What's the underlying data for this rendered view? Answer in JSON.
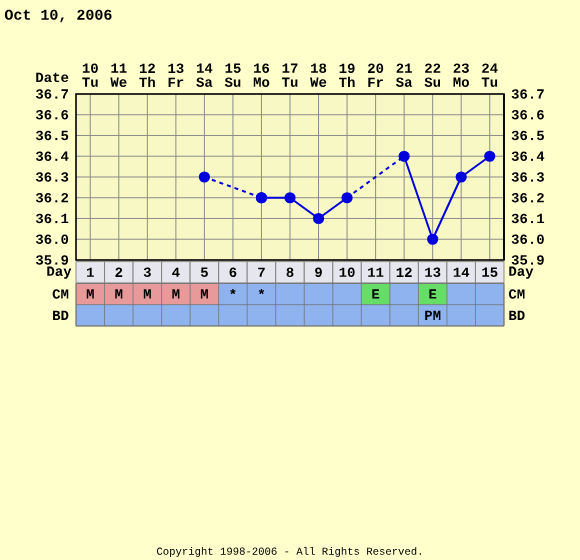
{
  "chart_data": [
    {
      "type": "line",
      "title": "Oct 10, 2006",
      "xlabel": "Date",
      "categories": [
        "10 Tu",
        "11 We",
        "12 Th",
        "13 Fr",
        "14 Sa",
        "15 Su",
        "16 Mo",
        "17 Tu",
        "18 We",
        "19 Th",
        "20 Fr",
        "21 Sa",
        "22 Su",
        "23 Mo",
        "24 Tu"
      ],
      "series": [
        {
          "color": "#0000dd",
          "marker": "circle",
          "line_style": "solid",
          "values": [
            null,
            null,
            null,
            null,
            null,
            null,
            36.2,
            36.2,
            36.1,
            36.2,
            null,
            null,
            null,
            null,
            null
          ]
        },
        {
          "color": "#0000dd",
          "marker": "circle",
          "line_style": "solid",
          "values": [
            null,
            null,
            null,
            null,
            null,
            null,
            null,
            null,
            null,
            null,
            null,
            36.4,
            36.0,
            36.3,
            36.4
          ]
        },
        {
          "color": "#0000dd",
          "marker": "circle",
          "line_style": "dashed",
          "values": [
            null,
            null,
            null,
            null,
            36.3,
            null,
            36.2,
            null,
            null,
            null,
            null,
            null,
            null,
            null,
            null
          ]
        },
        {
          "color": "#0000dd",
          "marker": "none",
          "line_style": "dashed",
          "values": [
            null,
            null,
            null,
            null,
            null,
            null,
            null,
            null,
            null,
            36.2,
            null,
            36.4,
            null,
            null,
            null
          ]
        }
      ],
      "ylim": [
        35.9,
        36.7
      ],
      "yticks": [
        35.9,
        {
          "value": 36,
          "label": "36.0"
        },
        36.1,
        36.2,
        36.3,
        36.4,
        36.5,
        36.6,
        36.7
      ],
      "y2lim": [
        35.9,
        36.7
      ],
      "y2ticks": [
        35.9,
        {
          "value": 36,
          "label": "36.0"
        },
        36.1,
        36.2,
        36.3,
        36.4,
        36.5,
        36.6,
        36.7
      ],
      "grid": true,
      "annotations": [
        "Copyright 1998-2006 - All Rights Reserved."
      ]
    },
    {
      "type": "heatmap",
      "xlabel": "Day",
      "categories": [
        "1",
        "2",
        "3",
        "4",
        "5",
        "6",
        "7",
        "8",
        "9",
        "10",
        "11",
        "12",
        "13",
        "14",
        "15"
      ],
      "y_categories": [
        "CM",
        "BD"
      ],
      "y2_categories": [
        "CM",
        "BD"
      ],
      "cells": [
        [
          null,
          null,
          null,
          null,
          null,
          null,
          null,
          null,
          null,
          null,
          null,
          null,
          null,
          null,
          null
        ],
        [
          null,
          null,
          null,
          null,
          null,
          null,
          null,
          null,
          null,
          null,
          null,
          null,
          null,
          null,
          null
        ]
      ],
      "cell_labels": [
        [
          "M",
          "M",
          "M",
          "M",
          "M",
          "*",
          "*",
          null,
          null,
          null,
          "E",
          null,
          "E",
          null,
          null
        ],
        [
          null,
          null,
          null,
          null,
          null,
          null,
          null,
          null,
          null,
          null,
          null,
          null,
          "PM",
          null,
          null
        ]
      ],
      "color": "#8fb3ee",
      "colors": [
        [
          "#e89a9a",
          "#e89a9a",
          "#e89a9a",
          "#e89a9a",
          "#e89a9a",
          null,
          null,
          null,
          null,
          null,
          "#66dd66",
          null,
          "#66dd66",
          null,
          null
        ],
        [
          null,
          null,
          null,
          null,
          null,
          null,
          null,
          null,
          null,
          null,
          null,
          null,
          null,
          null,
          null
        ]
      ],
      "annotations": [
        "Day"
      ]
    }
  ]
}
